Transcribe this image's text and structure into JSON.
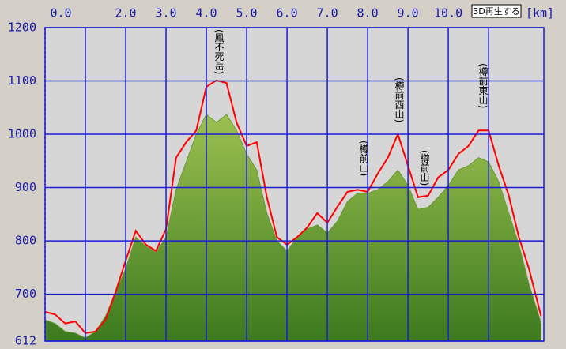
{
  "chart_data": {
    "type": "area-line",
    "x_label": "[km]",
    "button": "3D再生する",
    "x": [
      0,
      0.25,
      0.5,
      0.75,
      1,
      1.25,
      1.5,
      1.75,
      2,
      2.25,
      2.5,
      2.75,
      3,
      3.25,
      3.5,
      3.75,
      4,
      4.25,
      4.5,
      4.75,
      5,
      5.25,
      5.5,
      5.75,
      6,
      6.25,
      6.5,
      6.75,
      7,
      7.25,
      7.5,
      7.75,
      8,
      8.25,
      8.5,
      8.75,
      9,
      9.25,
      9.5,
      9.75,
      10,
      10.25,
      10.5,
      10.75,
      11,
      11.25,
      11.5,
      11.75,
      12,
      12.25,
      12.3
    ],
    "series": [
      {
        "name": "terrain",
        "color": "#6a9a30",
        "values": [
          652,
          645,
          630,
          627,
          618,
          630,
          659,
          704,
          748,
          807,
          790,
          778,
          807,
          896,
          948,
          1000,
          1037,
          1022,
          1037,
          1007,
          963,
          933,
          852,
          800,
          781,
          807,
          822,
          830,
          815,
          837,
          874,
          889,
          889,
          896,
          911,
          933,
          904,
          859,
          863,
          882,
          904,
          933,
          941,
          956,
          948,
          911,
          852,
          793,
          719,
          659,
          645
        ]
      },
      {
        "name": "track",
        "color": "#ff0000",
        "values": [
          667,
          662,
          645,
          649,
          627,
          630,
          652,
          704,
          763,
          819,
          793,
          781,
          822,
          956,
          985,
          1007,
          1089,
          1101,
          1096,
          1022,
          978,
          985,
          882,
          807,
          793,
          807,
          825,
          852,
          834,
          864,
          892,
          896,
          892,
          926,
          956,
          1000,
          941,
          882,
          885,
          919,
          933,
          963,
          978,
          1007,
          1007,
          941,
          885,
          807,
          748,
          674,
          659
        ]
      }
    ],
    "annotations": [
      "(鳳不死岳)",
      "(樽前山)",
      "(樽前西山)",
      "(樽前山)",
      "(樽前東山)"
    ],
    "xlim": [
      0,
      12.37
    ],
    "ylim": [
      612,
      1200
    ],
    "xticks": [
      {
        "value": 0,
        "label": "0.0"
      },
      {
        "value": 1,
        "label": null
      },
      {
        "value": 2,
        "label": "2.0"
      },
      {
        "value": 3,
        "label": "3.0"
      },
      {
        "value": 4,
        "label": "4.0"
      },
      {
        "value": 5,
        "label": "5.0"
      },
      {
        "value": 6,
        "label": "6.0"
      },
      {
        "value": 7,
        "label": "7.0"
      },
      {
        "value": 8,
        "label": "8.0"
      },
      {
        "value": 9,
        "label": "9.0"
      },
      {
        "value": 10,
        "label": "10.0"
      },
      {
        "value": 11,
        "label": null
      }
    ],
    "yticks": [
      612,
      700,
      800,
      900,
      1000,
      1100,
      1200
    ],
    "grid": true
  }
}
